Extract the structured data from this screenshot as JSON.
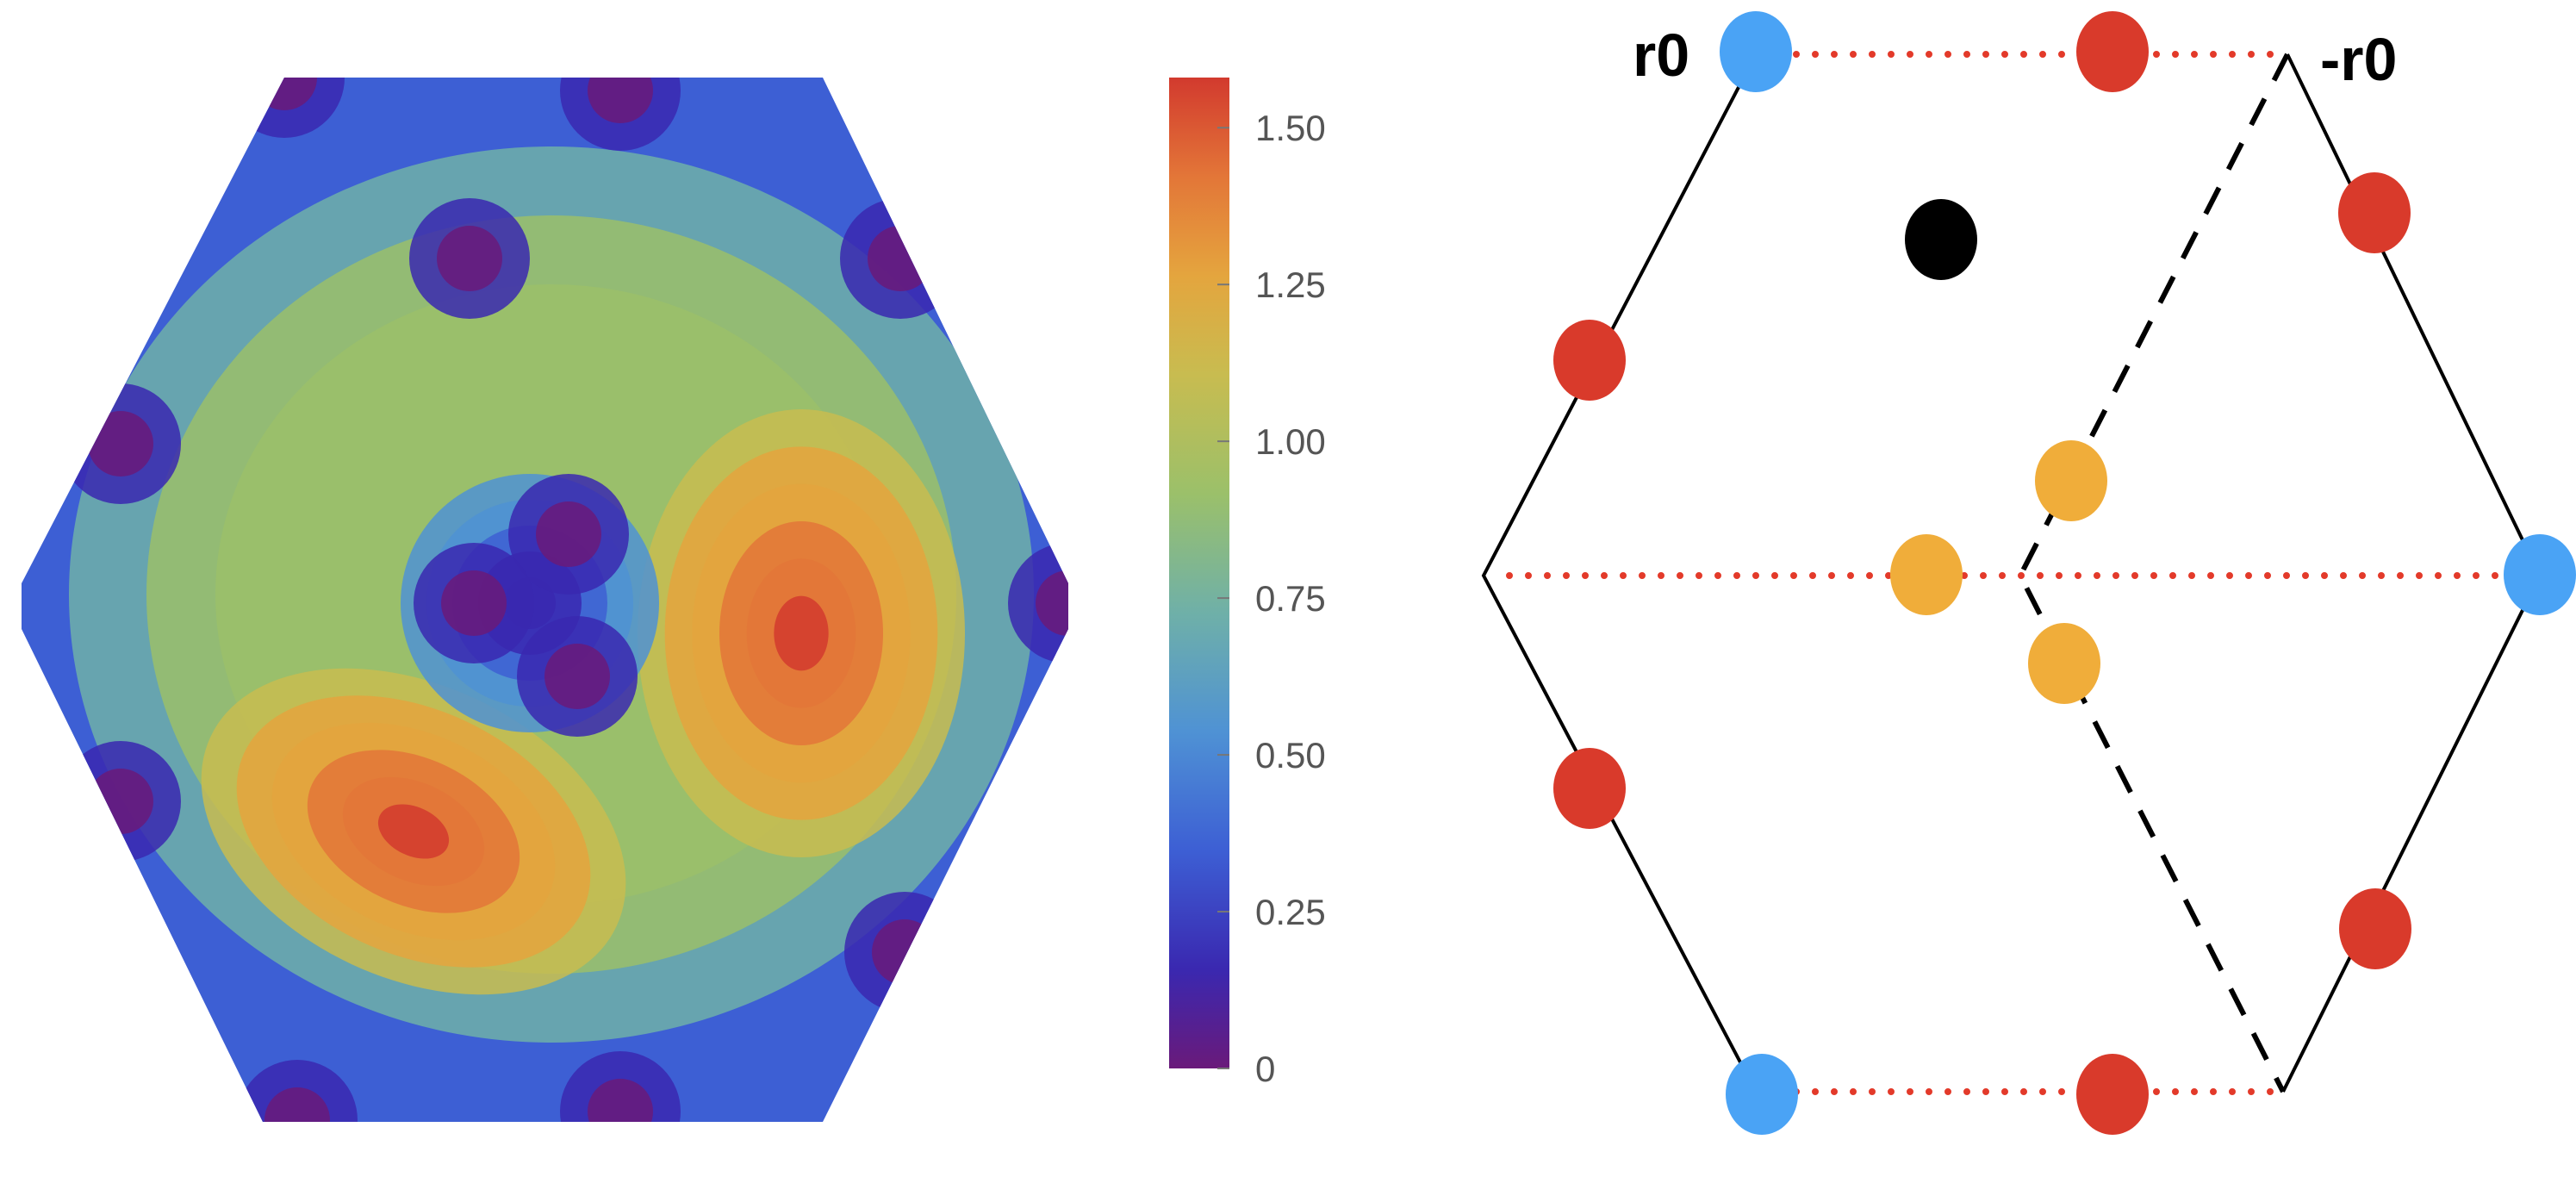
{
  "heatmap": {
    "colormap": [
      "#6a1a7a",
      "#3a28b0",
      "#3d5fd4",
      "#4f92d4",
      "#6fb0a8",
      "#9bc06a",
      "#c8bc50",
      "#e4a53e",
      "#e37638",
      "#d23a2e"
    ],
    "range": [
      0,
      1.58
    ],
    "background_value": 0.36,
    "peak_values": [
      1.58,
      1.58
    ],
    "minimum_value": 0.0
  },
  "colorbar": {
    "range": [
      0,
      1.58
    ],
    "tick_labels": [
      "0",
      "0.25",
      "0.50",
      "0.75",
      "1.00",
      "1.25",
      "1.50"
    ],
    "tick_values": [
      0,
      0.25,
      0.5,
      0.75,
      1.0,
      1.25,
      1.5
    ]
  },
  "diagram": {
    "label_r0": "r0",
    "label_minus_r0": "-r0",
    "colors": {
      "red": "#d93a2b",
      "blue": "#4aa3f5",
      "orange": "#f0ad3a",
      "black": "#000000",
      "outline": "#000000",
      "dotted": "#e33a2a"
    }
  }
}
